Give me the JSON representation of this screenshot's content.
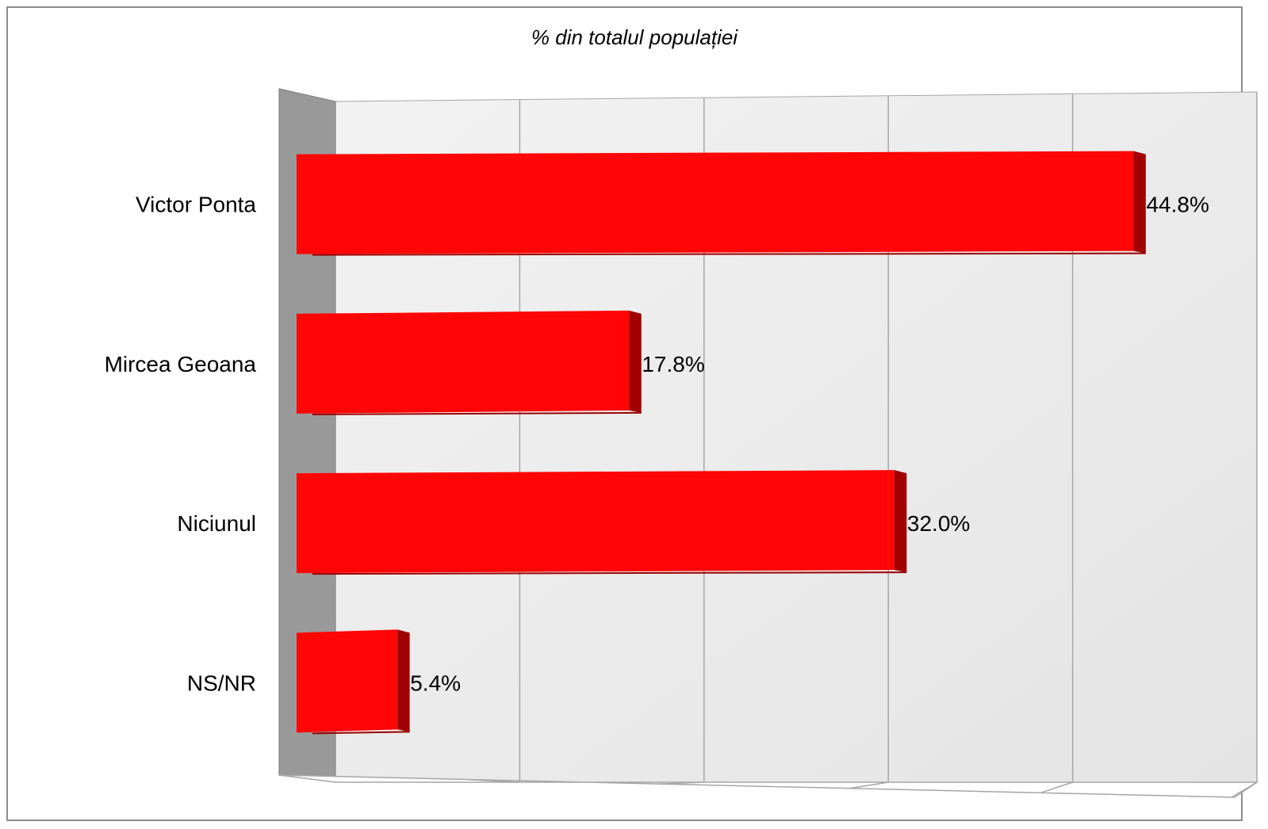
{
  "chart_data": {
    "type": "bar",
    "orientation": "horizontal",
    "style": "3d",
    "title": "% din totalul populației",
    "categories": [
      "Victor Ponta",
      "Mircea Geoana",
      "Niciunul",
      "NS/NR"
    ],
    "values": [
      44.8,
      17.8,
      32.0,
      5.4
    ],
    "value_labels": [
      "44.8%",
      "17.8%",
      "32.0%",
      "5.4%"
    ],
    "xlim": [
      0,
      50
    ],
    "xtick_step": 10,
    "grid": true,
    "legend": "none"
  },
  "colors": {
    "bar_front": "#ff0505",
    "bar_side": "#a00000",
    "bar_top": "#ff3a3a",
    "wall": "#e8e8e8",
    "side_wall": "#999999",
    "floor": "#ffffff",
    "grid": "#a6a6a6"
  }
}
